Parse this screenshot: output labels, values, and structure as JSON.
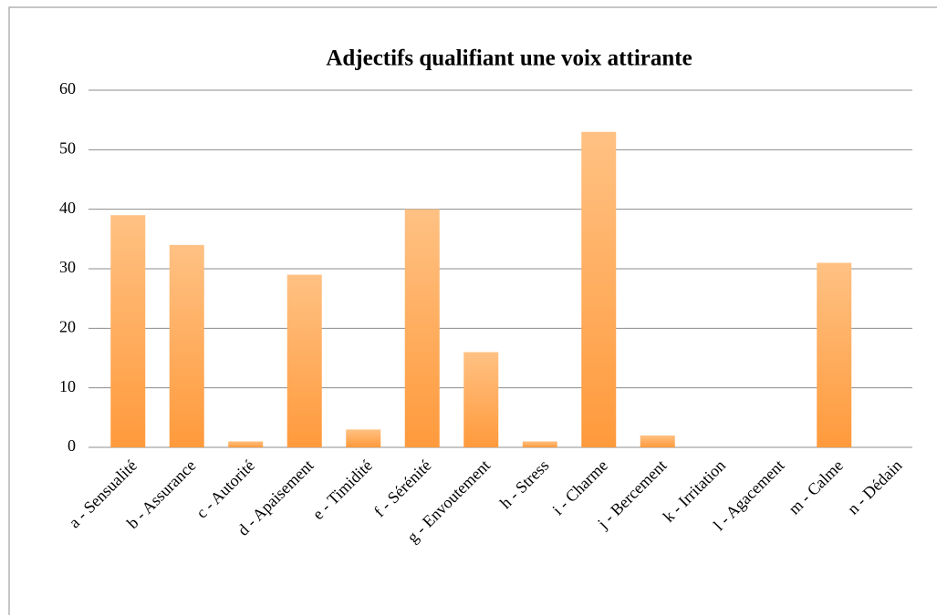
{
  "chart_data": {
    "type": "bar",
    "title": "Adjectifs qualifiant une voix attirante",
    "categories": [
      "a - Sensualité",
      "b - Assurance",
      "c - Autorité",
      "d - Apaisement",
      "e - Timidité",
      "f - Sérénité",
      "g - Envoutement",
      "h - Stress",
      "i - Charme",
      "j - Bercement",
      "k - Irritation",
      "l - Agacement",
      "m - Calme",
      "n - Dédain"
    ],
    "values": [
      39,
      34,
      1,
      29,
      3,
      40,
      16,
      1,
      53,
      2,
      0,
      0,
      31,
      0
    ],
    "color": "#ff9a3c",
    "ylim": [
      0,
      60
    ],
    "yticks": [
      0,
      10,
      20,
      30,
      40,
      50,
      60
    ],
    "grid": true
  }
}
